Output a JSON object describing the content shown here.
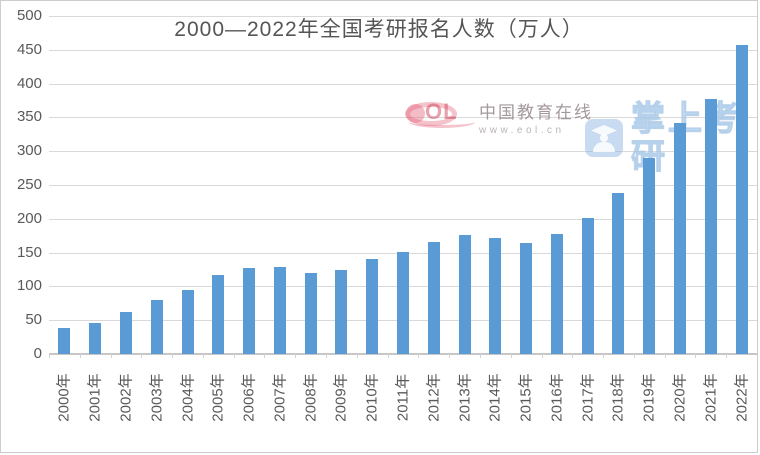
{
  "colors": {
    "bar": "#5B9BD5",
    "gridline": "#D9D9D9",
    "axis_text": "#595959",
    "title_text": "#555555",
    "watermark_red": "#E26076",
    "watermark_blue": "#9ABEE4"
  },
  "watermarks": {
    "eol": {
      "logo_text": "OL",
      "name": "中国教育在线",
      "url": "www.eol.cn"
    },
    "zhangshang": {
      "text": "掌上考研"
    }
  },
  "chart_data": {
    "type": "bar",
    "title": "2000—2022年全国考研报名人数（万人）",
    "xlabel": "",
    "ylabel": "",
    "categories": [
      "2000年",
      "2001年",
      "2002年",
      "2003年",
      "2004年",
      "2005年",
      "2006年",
      "2007年",
      "2008年",
      "2009年",
      "2010年",
      "2011年",
      "2012年",
      "2013年",
      "2014年",
      "2015年",
      "2016年",
      "2017年",
      "2018年",
      "2019年",
      "2020年",
      "2021年",
      "2022年"
    ],
    "values": [
      39.2,
      46,
      62.4,
      79.7,
      94.5,
      117.2,
      127.1,
      128.2,
      120,
      124.6,
      140.6,
      151.1,
      165.6,
      176,
      172,
      164.9,
      177,
      201,
      238,
      290,
      341,
      377,
      457
    ],
    "ylim": [
      0,
      500
    ],
    "yticks": [
      0,
      50,
      100,
      150,
      200,
      250,
      300,
      350,
      400,
      450,
      500
    ],
    "grid": true,
    "legend": false,
    "bar_color": "#5B9BD5"
  }
}
